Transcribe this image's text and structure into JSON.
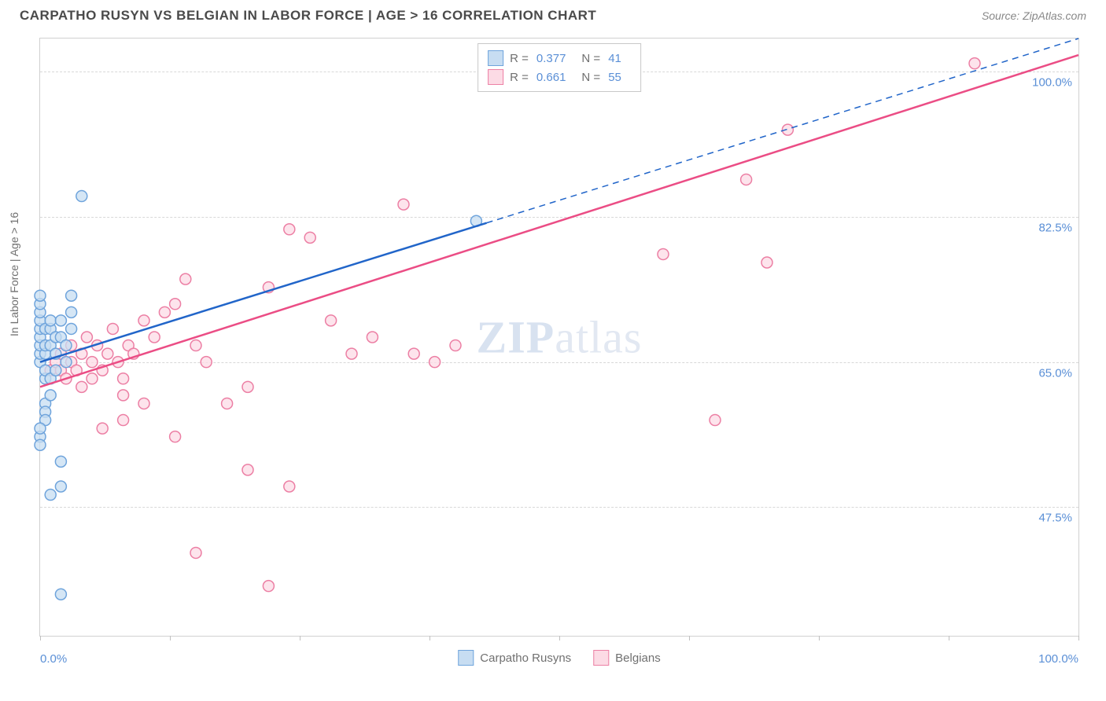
{
  "title": "CARPATHO RUSYN VS BELGIAN IN LABOR FORCE | AGE > 16 CORRELATION CHART",
  "source": "Source: ZipAtlas.com",
  "watermark_bold": "ZIP",
  "watermark_rest": "atlas",
  "y_axis_title": "In Labor Force | Age > 16",
  "chart": {
    "type": "scatter",
    "xlim": [
      0,
      100
    ],
    "ylim": [
      32,
      104
    ],
    "y_gridlines": [
      47.5,
      65.0,
      82.5,
      100.0
    ],
    "y_tick_labels": [
      "47.5%",
      "65.0%",
      "82.5%",
      "100.0%"
    ],
    "x_tick_positions": [
      0,
      12.5,
      25,
      37.5,
      50,
      62.5,
      75,
      87.5,
      100
    ],
    "x_left_label": "0.0%",
    "x_right_label": "100.0%",
    "series": [
      {
        "name": "Carpatho Rusyns",
        "marker_fill": "#c7ddf2",
        "marker_stroke": "#6fa4dc",
        "marker_radius": 7,
        "line_color": "#2165c9",
        "line_width": 2.5,
        "dash_extent": [
          43,
          100
        ],
        "trend": {
          "x1": 0,
          "y1": 65,
          "x2": 100,
          "y2": 104
        },
        "points": [
          [
            0,
            65
          ],
          [
            0,
            66
          ],
          [
            0,
            67
          ],
          [
            0,
            68
          ],
          [
            0,
            69
          ],
          [
            0,
            70
          ],
          [
            0,
            71
          ],
          [
            0,
            72
          ],
          [
            0,
            73
          ],
          [
            0.5,
            63
          ],
          [
            0.5,
            64
          ],
          [
            0.5,
            66
          ],
          [
            0.5,
            67
          ],
          [
            0.5,
            69
          ],
          [
            0.5,
            60
          ],
          [
            0.5,
            59
          ],
          [
            0.5,
            58
          ],
          [
            1,
            67
          ],
          [
            1,
            69
          ],
          [
            1,
            70
          ],
          [
            1,
            63
          ],
          [
            1,
            61
          ],
          [
            1.5,
            68
          ],
          [
            1.5,
            66
          ],
          [
            1.5,
            64
          ],
          [
            2,
            70
          ],
          [
            2,
            68
          ],
          [
            2.5,
            65
          ],
          [
            2.5,
            67
          ],
          [
            3,
            69
          ],
          [
            3,
            71
          ],
          [
            4,
            85
          ],
          [
            2,
            53
          ],
          [
            2,
            50
          ],
          [
            1,
            49
          ],
          [
            2,
            37
          ],
          [
            0,
            56
          ],
          [
            0,
            57
          ],
          [
            0,
            55
          ],
          [
            42,
            82
          ],
          [
            3,
            73
          ]
        ]
      },
      {
        "name": "Belgians",
        "marker_fill": "#fcdbe5",
        "marker_stroke": "#ec7fa4",
        "marker_radius": 7,
        "line_color": "#eb4d85",
        "line_width": 2.5,
        "dash_extent": [
          100,
          100
        ],
        "trend": {
          "x1": 0,
          "y1": 62,
          "x2": 100,
          "y2": 102
        },
        "points": [
          [
            1,
            64
          ],
          [
            1.5,
            65
          ],
          [
            2,
            64
          ],
          [
            2,
            66
          ],
          [
            2.5,
            63
          ],
          [
            3,
            65
          ],
          [
            3,
            67
          ],
          [
            3.5,
            64
          ],
          [
            4,
            62
          ],
          [
            4,
            66
          ],
          [
            4.5,
            68
          ],
          [
            5,
            63
          ],
          [
            5,
            65
          ],
          [
            5.5,
            67
          ],
          [
            6,
            64
          ],
          [
            6.5,
            66
          ],
          [
            7,
            69
          ],
          [
            7.5,
            65
          ],
          [
            8,
            63
          ],
          [
            8.5,
            67
          ],
          [
            9,
            66
          ],
          [
            10,
            70
          ],
          [
            10,
            60
          ],
          [
            11,
            68
          ],
          [
            12,
            71
          ],
          [
            13,
            72
          ],
          [
            14,
            75
          ],
          [
            15,
            67
          ],
          [
            16,
            65
          ],
          [
            6,
            57
          ],
          [
            13,
            56
          ],
          [
            8,
            58
          ],
          [
            18,
            60
          ],
          [
            20,
            62
          ],
          [
            22,
            74
          ],
          [
            24,
            81
          ],
          [
            26,
            80
          ],
          [
            28,
            70
          ],
          [
            30,
            66
          ],
          [
            32,
            68
          ],
          [
            35,
            84
          ],
          [
            36,
            66
          ],
          [
            38,
            65
          ],
          [
            40,
            67
          ],
          [
            20,
            52
          ],
          [
            24,
            50
          ],
          [
            15,
            42
          ],
          [
            22,
            38
          ],
          [
            70,
            77
          ],
          [
            60,
            78
          ],
          [
            68,
            87
          ],
          [
            72,
            93
          ],
          [
            90,
            101
          ],
          [
            65,
            58
          ],
          [
            8,
            61
          ]
        ]
      }
    ],
    "legend_top": [
      {
        "swatch_fill": "#c7ddf2",
        "swatch_stroke": "#6fa4dc",
        "r_label": "R =",
        "r_value": "0.377",
        "n_label": "N =",
        "n_value": "41"
      },
      {
        "swatch_fill": "#fcdbe5",
        "swatch_stroke": "#ec7fa4",
        "r_label": "R =",
        "r_value": "0.661",
        "n_label": "N =",
        "n_value": "55"
      }
    ],
    "legend_bottom": [
      {
        "swatch_fill": "#c7ddf2",
        "swatch_stroke": "#6fa4dc",
        "label": "Carpatho Rusyns"
      },
      {
        "swatch_fill": "#fcdbe5",
        "swatch_stroke": "#ec7fa4",
        "label": "Belgians"
      }
    ]
  }
}
